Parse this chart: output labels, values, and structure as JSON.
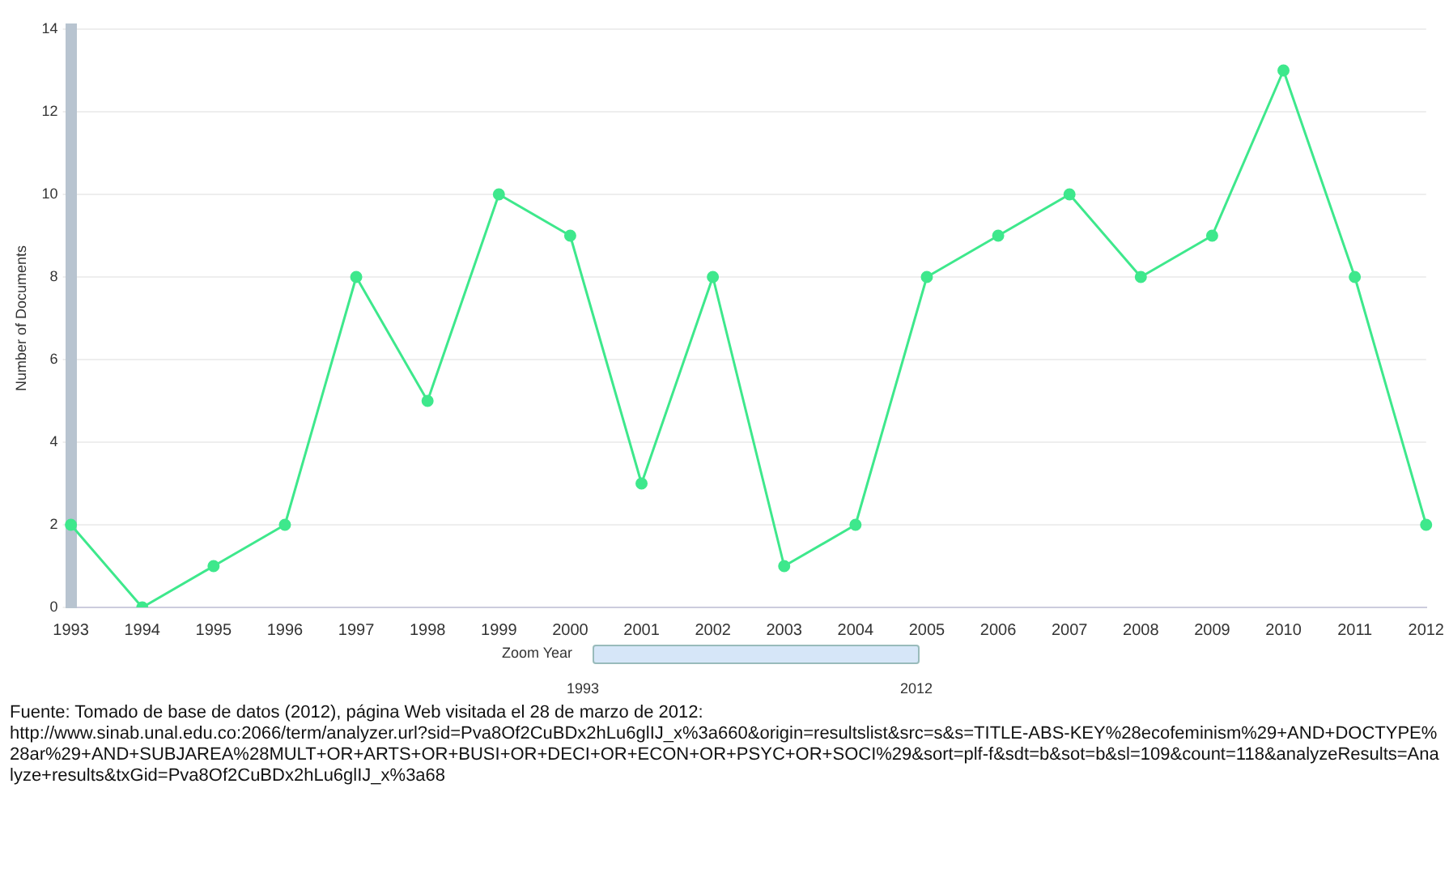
{
  "chart_data": {
    "type": "line",
    "ylabel": "Number of Documents",
    "categories": [
      "1993",
      "1994",
      "1995",
      "1996",
      "1997",
      "1998",
      "1999",
      "2000",
      "2001",
      "2002",
      "2003",
      "2004",
      "2005",
      "2006",
      "2007",
      "2008",
      "2009",
      "2010",
      "2011",
      "2012"
    ],
    "series": [
      {
        "color": "#3ee88c",
        "values": [
          2,
          0,
          1,
          2,
          8,
          5,
          10,
          9,
          3,
          8,
          1,
          2,
          8,
          9,
          10,
          8,
          9,
          13,
          8,
          2
        ]
      }
    ],
    "ylim": [
      0,
      14
    ],
    "yticks": [
      0,
      2,
      4,
      6,
      8,
      10,
      12,
      14
    ],
    "grid": "y",
    "legend": false,
    "marker": "circle",
    "line_style": "solid",
    "annotations": [
      "Zoom Year",
      "1993",
      "2012",
      "Fuente: Tomado de base de datos (2012), página Web visitada el 28 de marzo de 2012:",
      "http://www.sinab.unal.edu.co:2066/term/analyzer.url?sid=Pva8Of2CuBDx2hLu6glIJ_x%3a660&origin=resultslist&src=s&s=TITLE-ABS-KEY%28ecofeminism%29+AND+DOCTYPE%28ar%29+AND+SUBJAREA%28MULT+OR+ARTS+OR+BUSI+OR+DECI+OR+ECON+OR+PSYC+OR+SOCI%29&sort=plf-f&sdt=b&sot=b&sl=109&count=118&analyzeResults=Analyze+results&txGid=Pva8Of2CuBDx2hLu6glIJ_x%3a68"
    ]
  }
}
